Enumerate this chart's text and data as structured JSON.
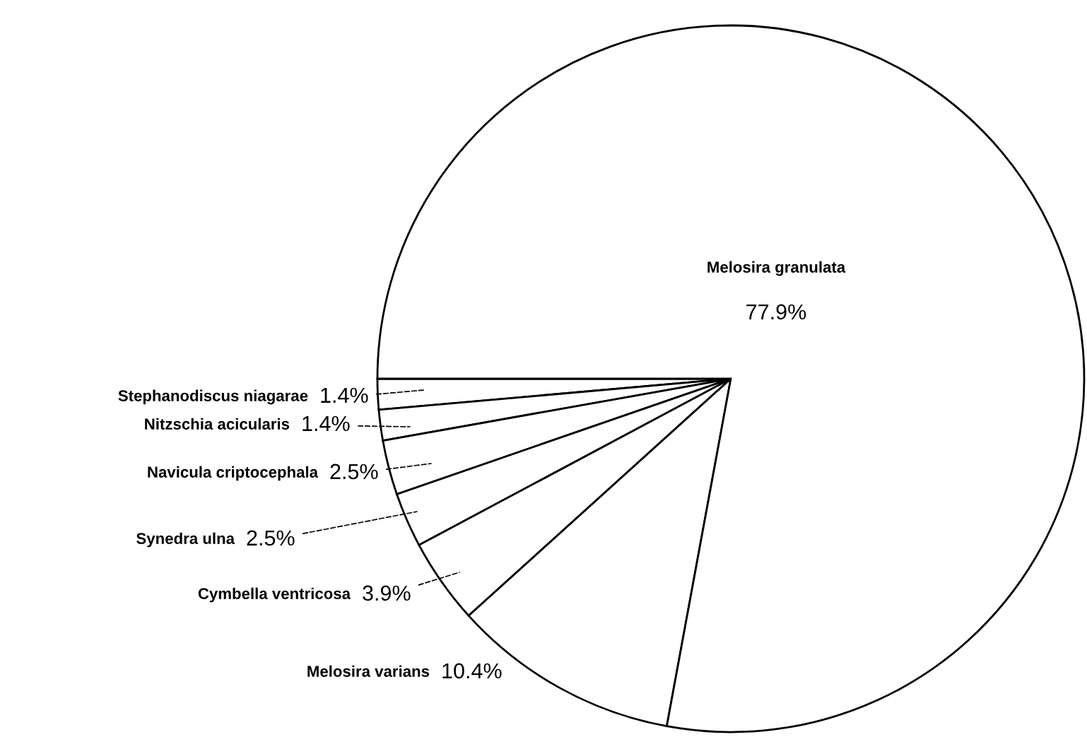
{
  "chart_data": {
    "type": "pie",
    "categories": [
      "Stephanodiscus niagarae",
      "Nitzschia acicularis",
      "Navicula criptocephala",
      "Synedra ulna",
      "Cymbella ventricosa",
      "Melosira varians",
      "Melosira granulata"
    ],
    "values": [
      1.4,
      1.4,
      2.5,
      2.5,
      3.9,
      10.4,
      77.9
    ],
    "colors": [
      "#ffffff",
      "#ffffff",
      "#ffffff",
      "#ffffff",
      "#ffffff",
      "#ffffff",
      "#ffffff"
    ],
    "value_labels": [
      "1.4%",
      "1.4%",
      "2.5%",
      "2.5%",
      "3.9%",
      "10.4%",
      "77.9%"
    ]
  }
}
